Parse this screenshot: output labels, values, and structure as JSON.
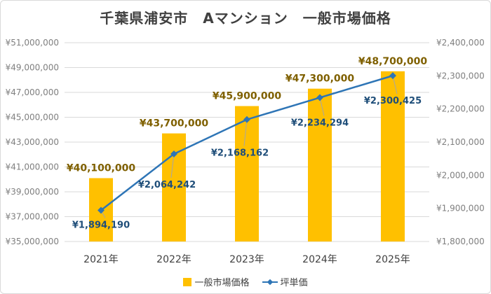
{
  "chart_data": {
    "type": "bar+line",
    "title": "千葉県浦安市　Aマンション　一般市場価格",
    "categories": [
      "2021年",
      "2022年",
      "2023年",
      "2024年",
      "2025年"
    ],
    "series": [
      {
        "name": "一般市場価格",
        "kind": "bar",
        "axis": "left",
        "color": "#ffc000",
        "values": [
          40100000,
          43700000,
          45900000,
          47300000,
          48700000
        ],
        "labels": [
          "¥40,100,000",
          "¥43,700,000",
          "¥45,900,000",
          "¥47,300,000",
          "¥48,700,000"
        ]
      },
      {
        "name": "坪単価",
        "kind": "line",
        "axis": "right",
        "color": "#2e75b6",
        "values": [
          1894190,
          2064242,
          2168162,
          2234294,
          2300425
        ],
        "labels": [
          "¥1,894,190",
          "¥2,064,242",
          "¥2,168,162",
          "¥2,234,294",
          "¥2,300,425"
        ]
      }
    ],
    "y_left": {
      "min": 35000000,
      "max": 51000000,
      "ticks": [
        35000000,
        37000000,
        39000000,
        41000000,
        43000000,
        45000000,
        47000000,
        49000000,
        51000000
      ],
      "tick_labels": [
        "¥35,000,000",
        "¥37,000,000",
        "¥39,000,000",
        "¥41,000,000",
        "¥43,000,000",
        "¥45,000,000",
        "¥47,000,000",
        "¥49,000,000",
        "¥51,000,000"
      ]
    },
    "y_right": {
      "min": 1800000,
      "max": 2400000,
      "ticks": [
        1800000,
        1900000,
        2000000,
        2100000,
        2200000,
        2300000,
        2400000
      ],
      "tick_labels": [
        "¥1,800,000",
        "¥1,900,000",
        "¥2,000,000",
        "¥2,100,000",
        "¥2,200,000",
        "¥2,300,000",
        "¥2,400,000"
      ]
    },
    "grid": true,
    "legend": "bottom"
  }
}
